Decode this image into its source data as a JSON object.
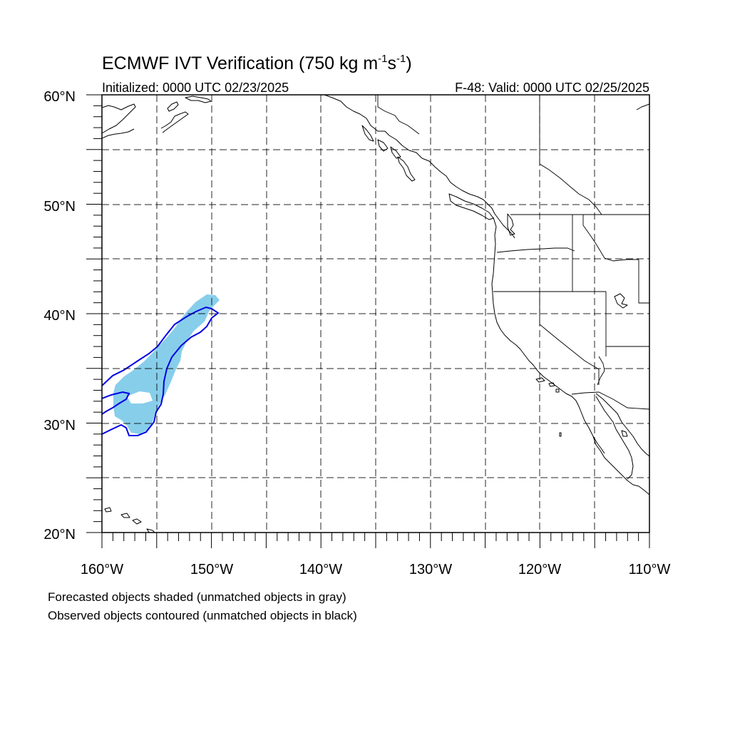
{
  "title_prefix": "ECMWF IVT Verification (750 kg m",
  "title_sup1": "-1",
  "title_mid": "s",
  "title_sup2": "-1",
  "title_suffix": ")",
  "initialized": "Initialized: 0000 UTC 02/23/2025",
  "valid": "F-48: Valid: 0000 UTC 02/25/2025",
  "lat_labels": [
    "60°N",
    "50°N",
    "40°N",
    "30°N",
    "20°N"
  ],
  "lon_labels": [
    "160°W",
    "150°W",
    "140°W",
    "130°W",
    "120°W",
    "110°W"
  ],
  "legend_forecast": "Forecasted objects shaded (unmatched objects in gray)",
  "legend_observed": "Observed objects contoured (unmatched objects in black)",
  "map_extent": {
    "lon_min": -160,
    "lon_max": -110,
    "lat_min": 20,
    "lat_max": 60
  },
  "colors": {
    "forecast_fill": "#87ceeb",
    "observed_contour": "#0000e6",
    "coastline": "#000000"
  }
}
